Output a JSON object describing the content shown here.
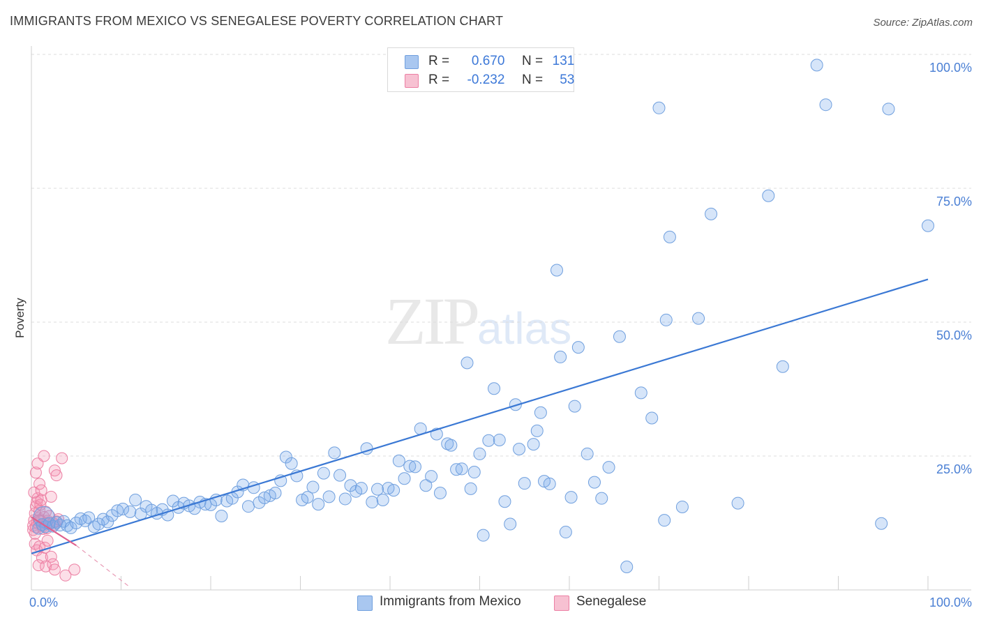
{
  "title": "IMMIGRANTS FROM MEXICO VS SENEGALESE POVERTY CORRELATION CHART",
  "source": "Source: ZipAtlas.com",
  "watermark": {
    "zip": "ZIP",
    "atlas": "atlas"
  },
  "legend_top": [
    {
      "r_label": "R =",
      "r_value": "0.670",
      "n_label": "N =",
      "n_value": "131",
      "color": "#a9c7f0",
      "border": "#6f9fde"
    },
    {
      "r_label": "R =",
      "r_value": "-0.232",
      "n_label": "N =",
      "n_value": "53",
      "color": "#f7c1d2",
      "border": "#ec7fa3"
    }
  ],
  "legend_bottom": [
    {
      "label": "Immigrants from Mexico",
      "color": "#a9c7f0",
      "border": "#6f9fde"
    },
    {
      "label": "Senegalese",
      "color": "#f7c1d2",
      "border": "#ec7fa3"
    }
  ],
  "chart_data": {
    "type": "scatter",
    "title": "IMMIGRANTS FROM MEXICO VS SENEGALESE POVERTY CORRELATION CHART",
    "xlabel": "",
    "ylabel": "Poverty",
    "xlim": [
      0,
      100
    ],
    "ylim": [
      0,
      100
    ],
    "x_tick_labels": [
      "0.0%",
      "100.0%"
    ],
    "y_ticks": [
      25,
      50,
      75,
      100
    ],
    "y_tick_labels": [
      "25.0%",
      "50.0%",
      "75.0%",
      "100.0%"
    ],
    "series": [
      {
        "name": "Immigrants from Mexico",
        "color": "#6f9fde",
        "trend": {
          "x": [
            0,
            100
          ],
          "y": [
            6.8,
            58.0
          ],
          "color": "#3a78d4"
        },
        "points": [
          [
            0.8,
            11.5
          ],
          [
            1.2,
            12.2
          ],
          [
            1.6,
            11.8
          ],
          [
            2.0,
            12.4
          ],
          [
            2.4,
            11.9
          ],
          [
            2.8,
            12.6
          ],
          [
            3.2,
            12.1
          ],
          [
            3.6,
            12.8
          ],
          [
            4.0,
            12.0
          ],
          [
            4.4,
            11.6
          ],
          [
            5.0,
            12.5
          ],
          [
            5.5,
            13.3
          ],
          [
            6.0,
            12.9
          ],
          [
            6.4,
            13.5
          ],
          [
            7.0,
            11.8
          ],
          [
            7.5,
            12.3
          ],
          [
            8.0,
            13.2
          ],
          [
            8.5,
            12.7
          ],
          [
            9.0,
            13.9
          ],
          [
            9.6,
            14.8
          ],
          [
            10.2,
            15.1
          ],
          [
            11.0,
            14.6
          ],
          [
            11.6,
            16.8
          ],
          [
            12.2,
            14.2
          ],
          [
            12.8,
            15.6
          ],
          [
            13.4,
            14.9
          ],
          [
            14.0,
            14.3
          ],
          [
            14.6,
            15.0
          ],
          [
            15.2,
            14.0
          ],
          [
            15.8,
            16.6
          ],
          [
            16.4,
            15.4
          ],
          [
            17.0,
            16.2
          ],
          [
            17.6,
            15.7
          ],
          [
            18.2,
            15.2
          ],
          [
            18.8,
            16.4
          ],
          [
            19.4,
            16.0
          ],
          [
            20.0,
            15.9
          ],
          [
            20.6,
            16.8
          ],
          [
            21.2,
            13.8
          ],
          [
            21.8,
            16.6
          ],
          [
            22.4,
            17.1
          ],
          [
            23.0,
            18.3
          ],
          [
            23.6,
            19.6
          ],
          [
            24.2,
            15.6
          ],
          [
            24.8,
            19.1
          ],
          [
            25.4,
            16.3
          ],
          [
            26.0,
            17.2
          ],
          [
            26.6,
            17.6
          ],
          [
            27.2,
            18.1
          ],
          [
            27.8,
            20.4
          ],
          [
            28.4,
            24.8
          ],
          [
            29.0,
            23.6
          ],
          [
            29.6,
            21.3
          ],
          [
            30.2,
            16.8
          ],
          [
            30.8,
            17.3
          ],
          [
            31.4,
            19.2
          ],
          [
            32.0,
            16.0
          ],
          [
            32.6,
            21.8
          ],
          [
            33.2,
            17.4
          ],
          [
            33.8,
            25.6
          ],
          [
            34.4,
            21.4
          ],
          [
            35.0,
            17.0
          ],
          [
            35.6,
            19.5
          ],
          [
            36.2,
            18.4
          ],
          [
            36.8,
            19.0
          ],
          [
            37.4,
            26.4
          ],
          [
            38.0,
            16.4
          ],
          [
            38.6,
            18.8
          ],
          [
            39.2,
            16.8
          ],
          [
            39.8,
            19.0
          ],
          [
            40.4,
            18.6
          ],
          [
            41.0,
            24.1
          ],
          [
            41.6,
            20.8
          ],
          [
            42.2,
            23.1
          ],
          [
            42.8,
            23.0
          ],
          [
            43.4,
            30.1
          ],
          [
            44.0,
            19.5
          ],
          [
            44.6,
            21.2
          ],
          [
            45.2,
            29.1
          ],
          [
            45.6,
            18.1
          ],
          [
            46.4,
            27.3
          ],
          [
            46.8,
            27.0
          ],
          [
            47.4,
            22.5
          ],
          [
            48.0,
            22.6
          ],
          [
            48.6,
            42.4
          ],
          [
            49.0,
            18.9
          ],
          [
            49.4,
            22.0
          ],
          [
            50.0,
            25.4
          ],
          [
            50.4,
            10.2
          ],
          [
            51.0,
            27.9
          ],
          [
            51.6,
            37.6
          ],
          [
            52.2,
            28.0
          ],
          [
            52.8,
            16.5
          ],
          [
            53.4,
            12.3
          ],
          [
            54.0,
            34.6
          ],
          [
            54.4,
            26.3
          ],
          [
            55.0,
            19.9
          ],
          [
            56.0,
            27.2
          ],
          [
            56.4,
            29.7
          ],
          [
            56.8,
            33.1
          ],
          [
            57.2,
            20.3
          ],
          [
            57.8,
            19.8
          ],
          [
            58.6,
            59.7
          ],
          [
            59.0,
            43.5
          ],
          [
            59.6,
            10.8
          ],
          [
            60.2,
            17.3
          ],
          [
            60.6,
            34.3
          ],
          [
            61.0,
            45.3
          ],
          [
            62.0,
            25.4
          ],
          [
            62.8,
            20.1
          ],
          [
            63.6,
            17.1
          ],
          [
            64.4,
            22.9
          ],
          [
            65.6,
            47.3
          ],
          [
            66.4,
            4.3
          ],
          [
            68.0,
            36.8
          ],
          [
            69.2,
            32.1
          ],
          [
            70.0,
            90.0
          ],
          [
            70.6,
            13.0
          ],
          [
            70.8,
            50.4
          ],
          [
            71.2,
            65.9
          ],
          [
            72.6,
            15.5
          ],
          [
            74.4,
            50.7
          ],
          [
            75.8,
            70.2
          ],
          [
            78.8,
            16.2
          ],
          [
            82.2,
            73.6
          ],
          [
            83.8,
            41.7
          ],
          [
            87.6,
            98.0
          ],
          [
            88.6,
            90.6
          ],
          [
            94.8,
            12.4
          ],
          [
            95.6,
            89.8
          ],
          [
            100.0,
            68.0
          ]
        ]
      },
      {
        "name": "Senegalese",
        "color": "#ec7fa3",
        "trend": {
          "x": [
            0,
            5.0
          ],
          "y": [
            13.6,
            8.3
          ],
          "dash_to": [
            11.0,
            0.5
          ],
          "color": "#e0608d"
        },
        "points": [
          [
            0.2,
            12.0
          ],
          [
            0.3,
            13.0
          ],
          [
            0.4,
            14.3
          ],
          [
            0.5,
            15.6
          ],
          [
            0.6,
            16.4
          ],
          [
            0.7,
            17.1
          ],
          [
            0.2,
            11.2
          ],
          [
            0.4,
            10.5
          ],
          [
            0.6,
            12.6
          ],
          [
            0.8,
            13.4
          ],
          [
            0.9,
            14.8
          ],
          [
            1.0,
            15.9
          ],
          [
            1.1,
            16.8
          ],
          [
            1.2,
            12.1
          ],
          [
            0.3,
            18.2
          ],
          [
            0.5,
            21.9
          ],
          [
            0.7,
            23.6
          ],
          [
            0.9,
            19.8
          ],
          [
            1.1,
            18.6
          ],
          [
            1.3,
            11.9
          ],
          [
            1.4,
            13.6
          ],
          [
            1.5,
            12.4
          ],
          [
            1.6,
            14.6
          ],
          [
            1.7,
            11.5
          ],
          [
            1.8,
            12.9
          ],
          [
            0.4,
            8.6
          ],
          [
            0.6,
            7.4
          ],
          [
            0.9,
            8.1
          ],
          [
            1.2,
            6.0
          ],
          [
            1.5,
            7.9
          ],
          [
            1.8,
            9.2
          ],
          [
            2.0,
            13.8
          ],
          [
            2.2,
            17.4
          ],
          [
            2.4,
            12.5
          ],
          [
            0.8,
            4.6
          ],
          [
            1.6,
            4.4
          ],
          [
            2.2,
            6.2
          ],
          [
            2.4,
            4.8
          ],
          [
            2.6,
            3.8
          ],
          [
            2.6,
            12.2
          ],
          [
            2.8,
            12.8
          ],
          [
            3.0,
            13.2
          ],
          [
            1.4,
            25.0
          ],
          [
            2.6,
            22.3
          ],
          [
            2.8,
            21.4
          ],
          [
            3.4,
            24.6
          ],
          [
            3.8,
            2.7
          ],
          [
            4.8,
            3.8
          ],
          [
            1.0,
            12.9
          ],
          [
            0.5,
            11.7
          ],
          [
            0.8,
            13.0
          ],
          [
            1.3,
            11.4
          ],
          [
            1.7,
            12.4
          ]
        ]
      }
    ]
  }
}
